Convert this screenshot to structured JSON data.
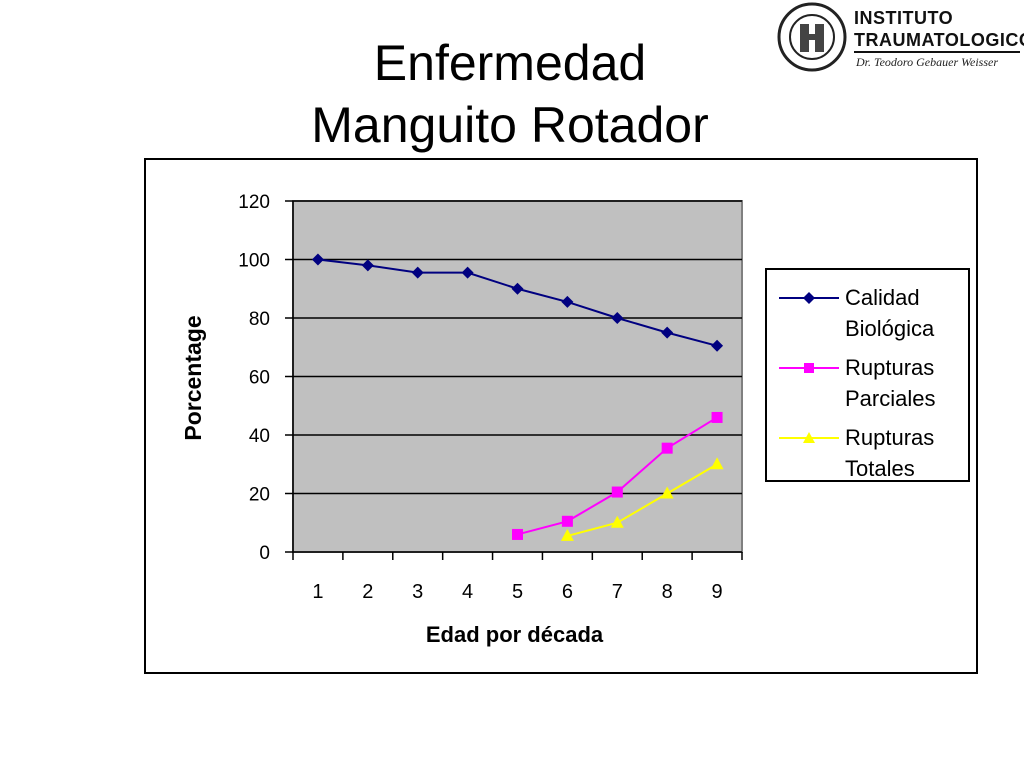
{
  "title": {
    "line1": "Enfermedad",
    "line2": "Manguito Rotador"
  },
  "logo": {
    "line1": "INSTITUTO",
    "line2": "TRAUMATOLOGICO",
    "subtitle": "Dr. Teodoro Gebauer Weisser",
    "seal_text": "INSTITUTO TRAUMATOLOGICO"
  },
  "colors": {
    "plot_background": "#c0c0c0",
    "series_blue": "#000080",
    "series_magenta": "#ff00ff",
    "series_yellow": "#ffff00"
  },
  "chart_data": {
    "type": "line",
    "xlabel": "Edad por década",
    "ylabel": "Porcentage",
    "categories": [
      "1",
      "2",
      "3",
      "4",
      "5",
      "6",
      "7",
      "8",
      "9"
    ],
    "ylim": [
      0,
      120
    ],
    "yticks": [
      "0",
      "20",
      "40",
      "60",
      "80",
      "100",
      "120"
    ],
    "grid": true,
    "legend_position": "right",
    "series": [
      {
        "name": "Calidad Biológica",
        "name_lines": [
          "Calidad",
          "Biológica"
        ],
        "marker": "diamond",
        "color": "#000080",
        "values": [
          100,
          98,
          95.5,
          95.5,
          90,
          85.5,
          80,
          75,
          70.5
        ]
      },
      {
        "name": "Rupturas Parciales",
        "name_lines": [
          "Rupturas",
          "Parciales"
        ],
        "marker": "square",
        "color": "#ff00ff",
        "values": [
          null,
          null,
          null,
          null,
          6,
          10.5,
          20.5,
          35.5,
          46
        ]
      },
      {
        "name": "Rupturas Totales",
        "name_lines": [
          "Rupturas",
          "Totales"
        ],
        "marker": "triangle",
        "color": "#ffff00",
        "values": [
          null,
          null,
          null,
          null,
          null,
          5.5,
          10,
          20,
          30
        ]
      }
    ]
  }
}
